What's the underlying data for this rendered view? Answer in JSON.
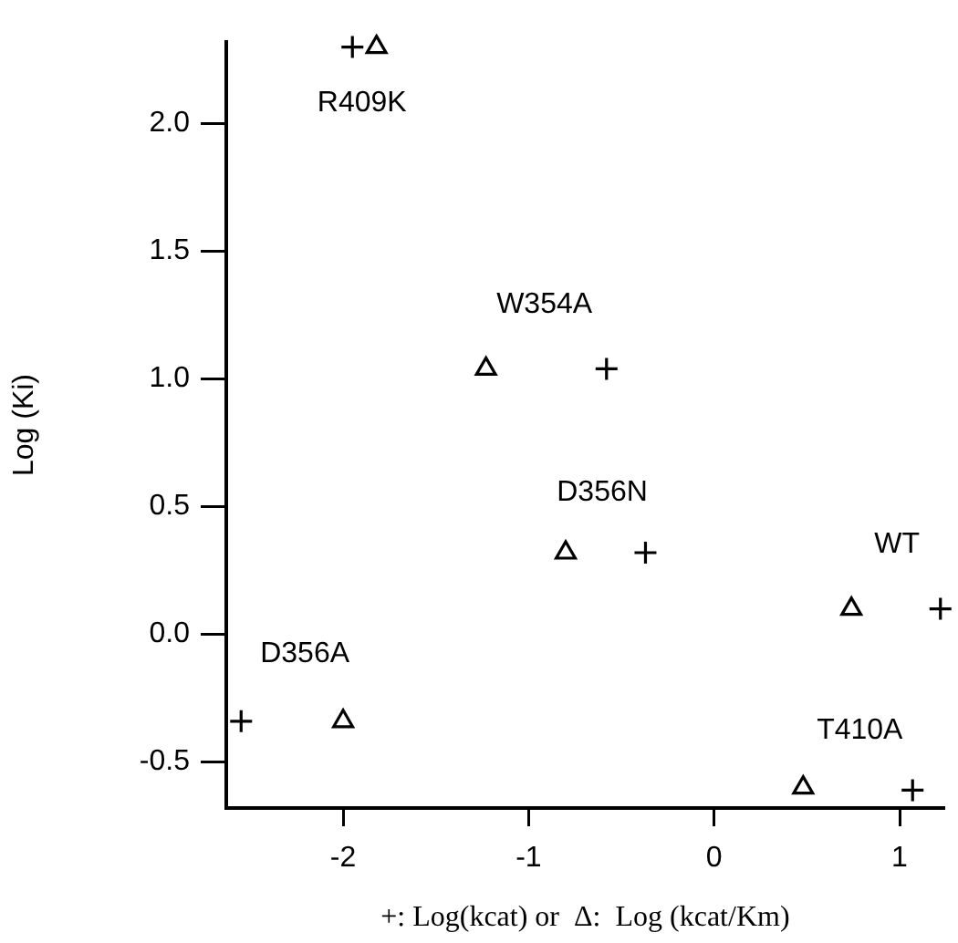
{
  "chart_data": {
    "type": "scatter",
    "xlabel": "+: Log(kcat) or  Δ:  Log (kcat/Km)",
    "ylabel": "Log (Ki)",
    "series": [
      {
        "color": "#000000",
        "marker": "cross",
        "x": [
          -1.95,
          -0.58,
          -0.37,
          1.22,
          1.07,
          -2.55
        ],
        "values": [
          2.3,
          1.04,
          0.32,
          0.1,
          -0.61,
          -0.34
        ]
      },
      {
        "color": "#000000",
        "marker": "triangle",
        "x": [
          -1.82,
          -1.23,
          -0.8,
          0.74,
          0.48,
          -2.0
        ],
        "values": [
          2.3,
          1.04,
          0.32,
          0.1,
          -0.6,
          -0.34
        ]
      }
    ],
    "annotations": [
      {
        "text": "R409K",
        "x": -1.82,
        "y": 2.3
      },
      {
        "text": "W354A",
        "x": -1.23,
        "y": 1.04
      },
      {
        "text": "D356N",
        "x": -0.8,
        "y": 0.32
      },
      {
        "text": "WT",
        "x": 0.74,
        "y": 0.1
      },
      {
        "text": "T410A",
        "x": 0.48,
        "y": -0.6
      },
      {
        "text": "D356A",
        "x": -2.0,
        "y": -0.34
      }
    ],
    "xlim": [
      -2.63,
      1.24
    ],
    "ylim": [
      -0.68,
      2.32
    ],
    "xticks": [
      -2,
      -1,
      0,
      1
    ],
    "yticks": [
      {
        "value": -0.5,
        "label": "-0.5"
      },
      {
        "value": 0,
        "label": "0.0"
      },
      {
        "value": 0.5,
        "label": "0.5"
      },
      {
        "value": 1,
        "label": "1.0"
      },
      {
        "value": 1.5,
        "label": "1.5"
      },
      {
        "value": 2,
        "label": "2.0"
      }
    ],
    "grid": false,
    "legend": false
  }
}
